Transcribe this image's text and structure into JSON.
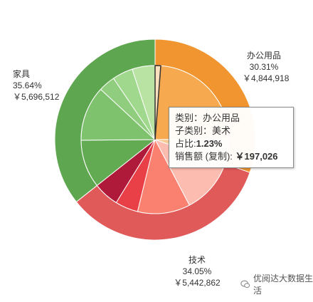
{
  "chart_data": {
    "type": "sunburst",
    "colors": {
      "office": "#f0952f",
      "tech": "#e05a5a",
      "furniture": "#5ea64f"
    },
    "series": [
      {
        "name": "办公用品",
        "value": 4844918,
        "value_label": "￥4,844,918",
        "percent_label": "30.31%",
        "color": "#f0952f",
        "children": [
          {
            "value": 1.23,
            "color": "#fbe0bd",
            "highlighted": true
          },
          {
            "value": 23.6,
            "color": "#f6a94f"
          },
          {
            "value": 5.48,
            "color": "#fac98f"
          }
        ]
      },
      {
        "name": "技术",
        "value": 5442862,
        "value_label": "￥5,442,862",
        "percent_label": "34.05%",
        "color": "#e05a5a",
        "children": [
          {
            "value": 12.0,
            "color": "#fcbcb0"
          },
          {
            "value": 11.5,
            "color": "#fa8070"
          },
          {
            "value": 5.0,
            "color": "#e93f46"
          },
          {
            "value": 5.55,
            "color": "#b01a3a"
          }
        ]
      },
      {
        "name": "家具",
        "value": 5696512,
        "value_label": "￥5,696,512",
        "percent_label": "35.64%",
        "color": "#5ea64f",
        "children": [
          {
            "value": 10.5,
            "color": "#62ab53"
          },
          {
            "value": 12.0,
            "color": "#7ec26d"
          },
          {
            "value": 3.64,
            "color": "#90cd7e"
          },
          {
            "value": 4.5,
            "color": "#a0d88d"
          },
          {
            "value": 5.0,
            "color": "#b9e3a3"
          }
        ]
      }
    ],
    "tooltip": {
      "line1": "类别：办公用品",
      "line2": "子类别：美术",
      "line3_prefix": "占比:",
      "line3_value": "1.23%",
      "line4_prefix": "销售额 (复制):",
      "line4_value": "￥197,026"
    }
  },
  "watermark": {
    "icon": "wechat-icon",
    "text": "优阅达大数据生活"
  }
}
